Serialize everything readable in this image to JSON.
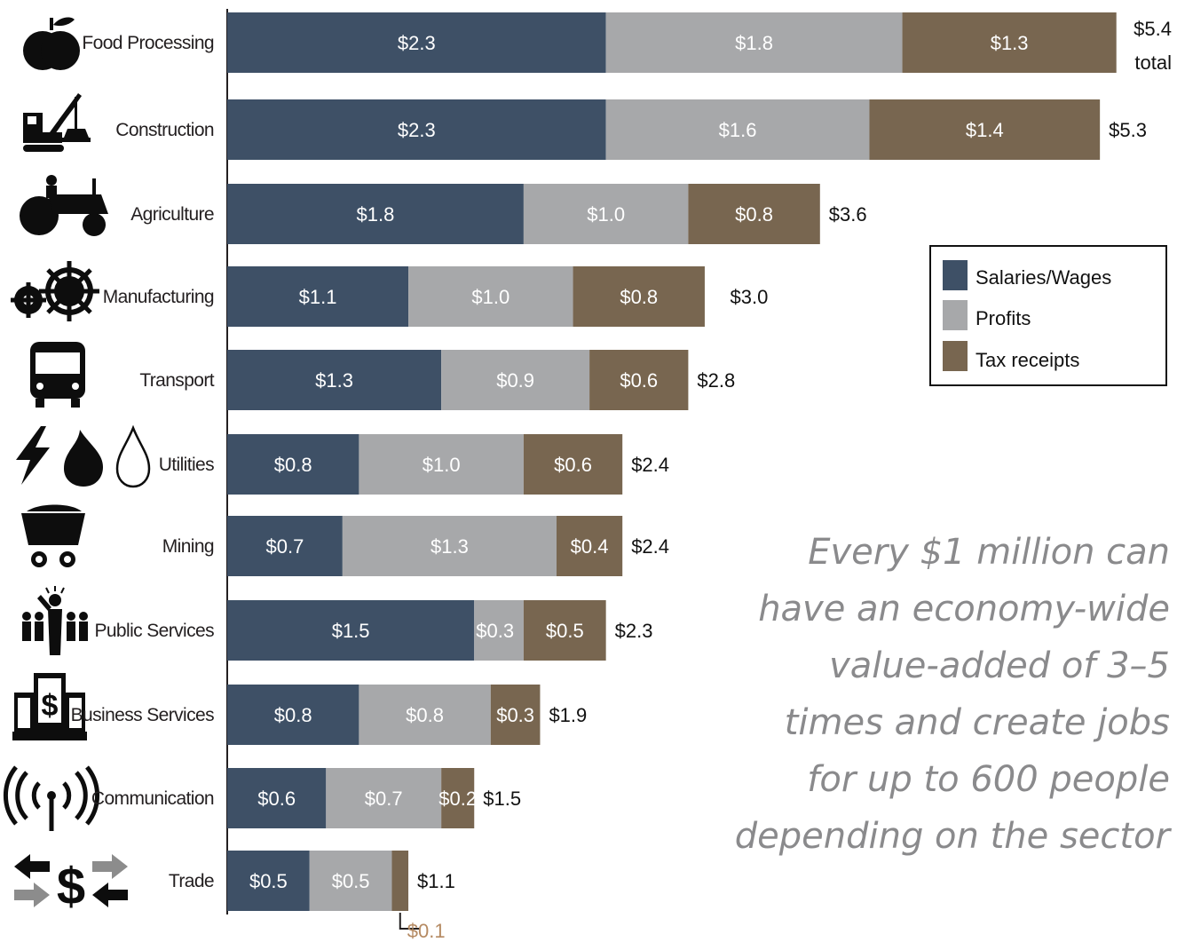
{
  "chart_data": {
    "type": "bar",
    "orientation": "horizontal",
    "stacked": true,
    "categories": [
      "Food Processing",
      "Construction",
      "Agriculture",
      "Manufacturing",
      "Transport",
      "Utilities",
      "Mining",
      "Public Services",
      "Business Services",
      "Communication",
      "Trade"
    ],
    "series": [
      {
        "name": "Salaries/Wages",
        "color": "#3e5066",
        "values": [
          2.3,
          2.3,
          1.8,
          1.1,
          1.3,
          0.8,
          0.7,
          1.5,
          0.8,
          0.6,
          0.5
        ],
        "labels": [
          "$2.3",
          "$2.3",
          "$1.8",
          "$1.1",
          "$1.3",
          "$0.8",
          "$0.7",
          "$1.5",
          "$0.8",
          "$0.6",
          "$0.5"
        ]
      },
      {
        "name": "Profits",
        "color": "#a7a8aa",
        "values": [
          1.8,
          1.6,
          1.0,
          1.0,
          0.9,
          1.0,
          1.3,
          0.3,
          0.8,
          0.7,
          0.5
        ],
        "labels": [
          "$1.8",
          "$1.6",
          "$1.0",
          "$1.0",
          "$0.9",
          "$1.0",
          "$1.3",
          "$0.3",
          "$0.8",
          "$0.7",
          "$0.5"
        ]
      },
      {
        "name": "Tax receipts",
        "color": "#786650",
        "values": [
          1.3,
          1.4,
          0.8,
          0.8,
          0.6,
          0.6,
          0.4,
          0.5,
          0.3,
          0.2,
          0.1
        ],
        "labels": [
          "$1.3",
          "$1.4",
          "$0.8",
          "$0.8",
          "$0.6",
          "$0.6",
          "$0.4",
          "$0.5",
          "$0.3",
          "$0.2",
          "$0.1"
        ]
      }
    ],
    "totals": [
      5.4,
      5.3,
      3.6,
      3.0,
      2.8,
      2.4,
      2.4,
      2.3,
      1.9,
      1.5,
      1.1
    ],
    "total_labels": [
      "$5.4",
      "$5.3",
      "$3.6",
      "$3.0",
      "$2.8",
      "$2.4",
      "$2.4",
      "$2.3",
      "$1.9",
      "$1.5",
      "$1.1"
    ],
    "first_total_suffix": "total",
    "icons": [
      "apple-icon",
      "crane-icon",
      "tractor-icon",
      "gears-icon",
      "bus-icon",
      "utilities-icon",
      "mine-cart-icon",
      "public-services-icon",
      "business-building-icon",
      "antenna-icon",
      "trade-arrows-icon"
    ],
    "legend": {
      "position": "right",
      "items": [
        "Salaries/Wages",
        "Profits",
        "Tax receipts"
      ]
    },
    "grid": false
  },
  "annotation": {
    "lines": [
      "Every $1 million can",
      "have an economy-wide",
      "value-added of 3–5",
      "times and create jobs",
      "for up to 600 people",
      "depending on the sector"
    ]
  }
}
